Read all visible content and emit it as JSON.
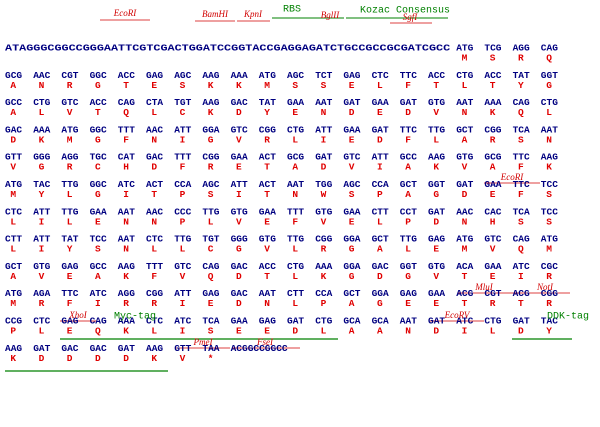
{
  "rows": [
    {
      "prefix": "ATAGGGCGGCCGGGAATTCGTCGACTGGATCCGGTACCGAGGAGATCTGCCGCCGCGATCGCC",
      "codons": [
        "ATG",
        "TCG",
        "AGG",
        "CAG"
      ],
      "aa": [
        "M",
        "S",
        "R",
        "Q"
      ]
    },
    {
      "codons": [
        "GCG",
        "AAC",
        "CGT",
        "GGC",
        "ACC",
        "GAG",
        "AGC",
        "AAG",
        "AAA",
        "ATG",
        "AGC",
        "TCT",
        "GAG",
        "CTC",
        "TTC",
        "ACC",
        "CTG",
        "ACC",
        "TAT",
        "GGT"
      ],
      "aa": [
        "A",
        "N",
        "R",
        "G",
        "T",
        "E",
        "S",
        "K",
        "K",
        "M",
        "S",
        "S",
        "E",
        "L",
        "F",
        "T",
        "L",
        "T",
        "Y",
        "G"
      ]
    },
    {
      "codons": [
        "GCC",
        "CTG",
        "GTC",
        "ACC",
        "CAG",
        "CTA",
        "TGT",
        "AAG",
        "GAC",
        "TAT",
        "GAA",
        "AAT",
        "GAT",
        "GAA",
        "GAT",
        "GTG",
        "AAT",
        "AAA",
        "CAG",
        "CTG"
      ],
      "aa": [
        "A",
        "L",
        "V",
        "T",
        "Q",
        "L",
        "C",
        "K",
        "D",
        "Y",
        "E",
        "N",
        "D",
        "E",
        "D",
        "V",
        "N",
        "K",
        "Q",
        "L"
      ]
    },
    {
      "codons": [
        "GAC",
        "AAA",
        "ATG",
        "GGC",
        "TTT",
        "AAC",
        "ATT",
        "GGA",
        "GTC",
        "CGG",
        "CTG",
        "ATT",
        "GAA",
        "GAT",
        "TTC",
        "TTG",
        "GCT",
        "CGG",
        "TCA",
        "AAT"
      ],
      "aa": [
        "D",
        "K",
        "M",
        "G",
        "F",
        "N",
        "I",
        "G",
        "V",
        "R",
        "L",
        "I",
        "E",
        "D",
        "F",
        "L",
        "A",
        "R",
        "S",
        "N"
      ]
    },
    {
      "codons": [
        "GTT",
        "GGG",
        "AGG",
        "TGC",
        "CAT",
        "GAC",
        "TTT",
        "CGG",
        "GAA",
        "ACT",
        "GCG",
        "GAT",
        "GTC",
        "ATT",
        "GCC",
        "AAG",
        "GTG",
        "GCG",
        "TTC",
        "AAG"
      ],
      "aa": [
        "V",
        "G",
        "R",
        "C",
        "H",
        "D",
        "F",
        "R",
        "E",
        "T",
        "A",
        "D",
        "V",
        "I",
        "A",
        "K",
        "V",
        "A",
        "F",
        "K"
      ]
    },
    {
      "codons": [
        "ATG",
        "TAC",
        "TTG",
        "GGC",
        "ATC",
        "ACT",
        "CCA",
        "AGC",
        "ATT",
        "ACT",
        "AAT",
        "TGG",
        "AGC",
        "CCA",
        "GCT",
        "GGT",
        "GAT",
        "GAA",
        "TTC",
        "TCC"
      ],
      "aa": [
        "M",
        "Y",
        "L",
        "G",
        "I",
        "T",
        "P",
        "S",
        "I",
        "T",
        "N",
        "W",
        "S",
        "P",
        "A",
        "G",
        "D",
        "E",
        "F",
        "S"
      ]
    },
    {
      "codons": [
        "CTC",
        "ATT",
        "TTG",
        "GAA",
        "AAT",
        "AAC",
        "CCC",
        "TTG",
        "GTG",
        "GAA",
        "TTT",
        "GTG",
        "GAA",
        "CTT",
        "CCT",
        "GAT",
        "AAC",
        "CAC",
        "TCA",
        "TCC"
      ],
      "aa": [
        "L",
        "I",
        "L",
        "E",
        "N",
        "N",
        "P",
        "L",
        "V",
        "E",
        "F",
        "V",
        "E",
        "L",
        "P",
        "D",
        "N",
        "H",
        "S",
        "S"
      ]
    },
    {
      "codons": [
        "CTT",
        "ATT",
        "TAT",
        "TCC",
        "AAT",
        "CTC",
        "TTG",
        "TGT",
        "GGG",
        "GTG",
        "TTG",
        "CGG",
        "GGA",
        "GCT",
        "TTG",
        "GAG",
        "ATG",
        "GTC",
        "CAG",
        "ATG"
      ],
      "aa": [
        "L",
        "I",
        "Y",
        "S",
        "N",
        "L",
        "L",
        "C",
        "G",
        "V",
        "L",
        "R",
        "G",
        "A",
        "L",
        "E",
        "M",
        "V",
        "Q",
        "M"
      ]
    },
    {
      "codons": [
        "GCT",
        "GTG",
        "GAG",
        "GCC",
        "AAG",
        "TTT",
        "GTC",
        "CAG",
        "GAC",
        "ACC",
        "CTG",
        "AAA",
        "GGA",
        "GAC",
        "GGT",
        "GTG",
        "ACA",
        "GAA",
        "ATC",
        "CGC"
      ],
      "aa": [
        "A",
        "V",
        "E",
        "A",
        "K",
        "F",
        "V",
        "Q",
        "D",
        "T",
        "L",
        "K",
        "G",
        "D",
        "G",
        "V",
        "T",
        "E",
        "I",
        "R"
      ]
    },
    {
      "codons": [
        "ATG",
        "AGA",
        "TTC",
        "ATC",
        "AGG",
        "CGG",
        "ATT",
        "GAG",
        "GAC",
        "AAT",
        "CTT",
        "CCA",
        "GCT",
        "GGA",
        "GAG",
        "GAA",
        "ACG",
        "CGT",
        "ACG",
        "CGG"
      ],
      "aa": [
        "M",
        "R",
        "F",
        "I",
        "R",
        "R",
        "I",
        "E",
        "D",
        "N",
        "L",
        "P",
        "A",
        "G",
        "E",
        "E",
        "T",
        "R",
        "T",
        "R"
      ]
    },
    {
      "codons": [
        "CCG",
        "CTC",
        "GAG",
        "CAG",
        "AAA",
        "CTC",
        "ATC",
        "TCA",
        "GAA",
        "GAG",
        "GAT",
        "CTG",
        "GCA",
        "GCA",
        "AAT",
        "GAT",
        "ATC",
        "CTG",
        "GAT",
        "TAC"
      ],
      "aa": [
        "P",
        "L",
        "E",
        "Q",
        "K",
        "L",
        "I",
        "S",
        "E",
        "E",
        "D",
        "L",
        "A",
        "A",
        "N",
        "D",
        "I",
        "L",
        "D",
        "Y"
      ]
    },
    {
      "codons": [
        "AAG",
        "GAT",
        "GAC",
        "GAC",
        "GAT",
        "AAG",
        "GTT",
        "TAA"
      ],
      "aa": [
        "K",
        "D",
        "D",
        "D",
        "D",
        "K",
        "V",
        "*"
      ],
      "suffix": "ACGGCCGGCC"
    }
  ],
  "annotations": [
    "EcoRI",
    "BamHI",
    "KpnI",
    "RBS",
    "BglII",
    "Kozac Consensus",
    "SgfI",
    "EcoRI",
    "MluI",
    "NotI",
    "XhoI",
    "Myc-tag",
    "EcoRV",
    "DDK-tag",
    "PmeI",
    "FseI"
  ]
}
